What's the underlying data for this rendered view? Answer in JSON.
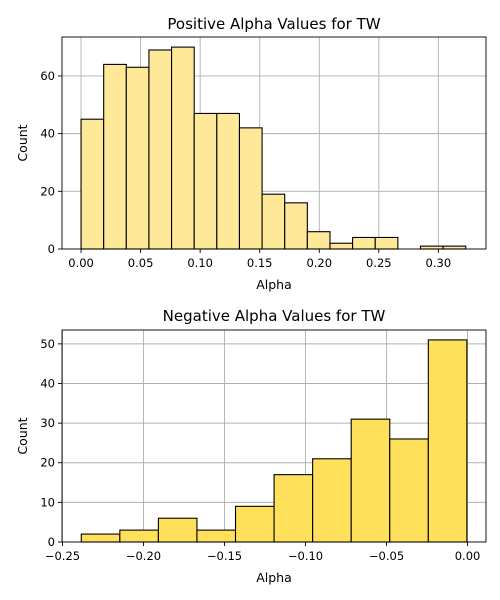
{
  "chart_data": [
    {
      "type": "bar",
      "title": "Positive Alpha Values for TW",
      "xlabel": "Alpha",
      "ylabel": "Count",
      "color": "#ffe898",
      "grid": true,
      "xlim": [
        -0.016,
        0.34
      ],
      "ylim": [
        0,
        73.5
      ],
      "xticks": [
        "0.00",
        "0.05",
        "0.10",
        "0.15",
        "0.20",
        "0.25",
        "0.30"
      ],
      "yticks": [
        "0",
        "20",
        "40",
        "60"
      ],
      "bins": [
        {
          "x0": 0.0,
          "x1": 0.019,
          "value": 45
        },
        {
          "x0": 0.019,
          "x1": 0.038,
          "value": 64
        },
        {
          "x0": 0.038,
          "x1": 0.057,
          "value": 63
        },
        {
          "x0": 0.057,
          "x1": 0.076,
          "value": 69
        },
        {
          "x0": 0.076,
          "x1": 0.095,
          "value": 70
        },
        {
          "x0": 0.095,
          "x1": 0.114,
          "value": 47
        },
        {
          "x0": 0.114,
          "x1": 0.133,
          "value": 47
        },
        {
          "x0": 0.133,
          "x1": 0.152,
          "value": 42
        },
        {
          "x0": 0.152,
          "x1": 0.171,
          "value": 19
        },
        {
          "x0": 0.171,
          "x1": 0.19,
          "value": 16
        },
        {
          "x0": 0.19,
          "x1": 0.209,
          "value": 6
        },
        {
          "x0": 0.209,
          "x1": 0.228,
          "value": 2
        },
        {
          "x0": 0.228,
          "x1": 0.247,
          "value": 4
        },
        {
          "x0": 0.247,
          "x1": 0.266,
          "value": 4
        },
        {
          "x0": 0.266,
          "x1": 0.285,
          "value": 0
        },
        {
          "x0": 0.285,
          "x1": 0.304,
          "value": 1
        },
        {
          "x0": 0.304,
          "x1": 0.323,
          "value": 1
        }
      ]
    },
    {
      "type": "bar",
      "title": "Negative Alpha Values for TW",
      "xlabel": "Alpha",
      "ylabel": "Count",
      "color": "#ffe05a",
      "grid": true,
      "xlim": [
        -0.2503,
        0.0114
      ],
      "ylim": [
        0,
        53.5
      ],
      "xticks": [
        "−0.25",
        "−0.20",
        "−0.15",
        "−0.10",
        "−0.05",
        "0.00"
      ],
      "yticks": [
        "0",
        "10",
        "20",
        "30",
        "40",
        "50"
      ],
      "bins": [
        {
          "x0": -0.2384,
          "x1": -0.2146,
          "value": 2
        },
        {
          "x0": -0.2146,
          "x1": -0.1908,
          "value": 3
        },
        {
          "x0": -0.1908,
          "x1": -0.167,
          "value": 6
        },
        {
          "x0": -0.167,
          "x1": -0.1432,
          "value": 3
        },
        {
          "x0": -0.1432,
          "x1": -0.1194,
          "value": 9
        },
        {
          "x0": -0.1194,
          "x1": -0.0956,
          "value": 17
        },
        {
          "x0": -0.0956,
          "x1": -0.0718,
          "value": 21
        },
        {
          "x0": -0.0718,
          "x1": -0.048,
          "value": 31
        },
        {
          "x0": -0.048,
          "x1": -0.0242,
          "value": 26
        },
        {
          "x0": -0.0242,
          "x1": -0.0004,
          "value": 51
        }
      ]
    }
  ]
}
